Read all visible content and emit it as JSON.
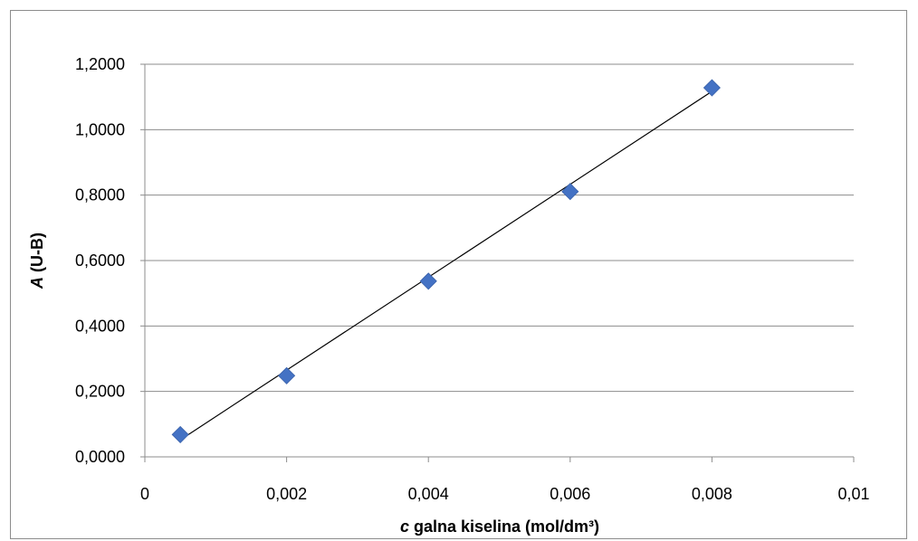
{
  "chart_data": {
    "type": "scatter",
    "title": "",
    "xlabel": {
      "italic": "c",
      "rest": " galna kiselina (mol/dm³)"
    },
    "ylabel": {
      "italic": "A",
      "rest": " (U-B)"
    },
    "xlim": [
      0,
      0.01
    ],
    "ylim": [
      0,
      1.2
    ],
    "x_ticks": [
      0,
      0.002,
      0.004,
      0.006,
      0.008,
      0.01
    ],
    "x_tick_labels": [
      "0",
      "0,002",
      "0,004",
      "0,006",
      "0,008",
      "0,01"
    ],
    "y_ticks": [
      0,
      0.2,
      0.4,
      0.6,
      0.8,
      1.0,
      1.2
    ],
    "y_tick_labels": [
      "0,0000",
      "0,2000",
      "0,4000",
      "0,6000",
      "0,8000",
      "1,0000",
      "1,2000"
    ],
    "grid": {
      "horizontal": true,
      "vertical": false
    },
    "series": [
      {
        "marker": "diamond",
        "color": "#4472C4",
        "x": [
          0.0005,
          0.002,
          0.004,
          0.006,
          0.008
        ],
        "y": [
          0.068,
          0.248,
          0.537,
          0.811,
          1.128
        ]
      }
    ],
    "trendline": {
      "type": "linear",
      "color": "#000000",
      "x_range": [
        0.0005,
        0.008
      ],
      "y_values": [
        0.052,
        1.117
      ]
    },
    "legend": "none"
  }
}
